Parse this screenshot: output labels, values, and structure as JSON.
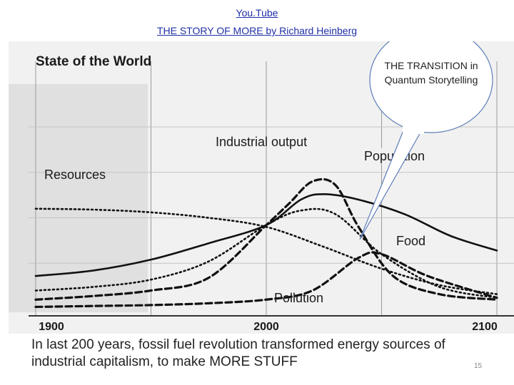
{
  "header": {
    "link1": "You.Tube",
    "link2": "THE STORY OF MORE by Richard Heinberg"
  },
  "callout": {
    "text": "THE TRANSITION in Quantum Storytelling"
  },
  "caption": "In last 200 years, fossil fuel revolution transformed energy sources of industrial capitalism, to make MORE STUFF",
  "page_number": "15",
  "chart_data": {
    "type": "line",
    "title": "State of the World",
    "xlabel": "",
    "ylabel": "",
    "x_ticks": [
      "1900",
      "2000",
      "2100"
    ],
    "xlim": [
      1900,
      2100
    ],
    "ylim": [
      0,
      1
    ],
    "grid": true,
    "series": [
      {
        "name": "Resources",
        "style": "dotted",
        "x": [
          1900,
          1925,
          1950,
          1975,
          2000,
          2025,
          2050,
          2075,
          2100
        ],
        "y": [
          0.55,
          0.545,
          0.53,
          0.5,
          0.45,
          0.34,
          0.22,
          0.13,
          0.08
        ]
      },
      {
        "name": "Population",
        "style": "solid",
        "x": [
          1900,
          1925,
          1950,
          1975,
          2000,
          2015,
          2025,
          2040,
          2060,
          2080,
          2100
        ],
        "y": [
          0.18,
          0.21,
          0.27,
          0.36,
          0.46,
          0.6,
          0.63,
          0.6,
          0.52,
          0.4,
          0.32
        ]
      },
      {
        "name": "Industrial output",
        "style": "dashed",
        "x": [
          1900,
          1925,
          1950,
          1975,
          2000,
          2010,
          2020,
          2030,
          2040,
          2055,
          2075,
          2100
        ],
        "y": [
          0.05,
          0.07,
          0.1,
          0.17,
          0.46,
          0.58,
          0.7,
          0.68,
          0.45,
          0.18,
          0.08,
          0.05
        ]
      },
      {
        "name": "Food",
        "style": "dotted",
        "x": [
          1900,
          1925,
          1950,
          1975,
          2000,
          2015,
          2030,
          2050,
          2075,
          2100
        ],
        "y": [
          0.1,
          0.12,
          0.16,
          0.26,
          0.46,
          0.54,
          0.52,
          0.3,
          0.12,
          0.06
        ]
      },
      {
        "name": "Pollution",
        "style": "dashed",
        "x": [
          1900,
          1925,
          1950,
          1975,
          2000,
          2020,
          2040,
          2050,
          2070,
          2100
        ],
        "y": [
          0.01,
          0.015,
          0.02,
          0.03,
          0.05,
          0.1,
          0.28,
          0.3,
          0.18,
          0.06
        ]
      }
    ]
  }
}
